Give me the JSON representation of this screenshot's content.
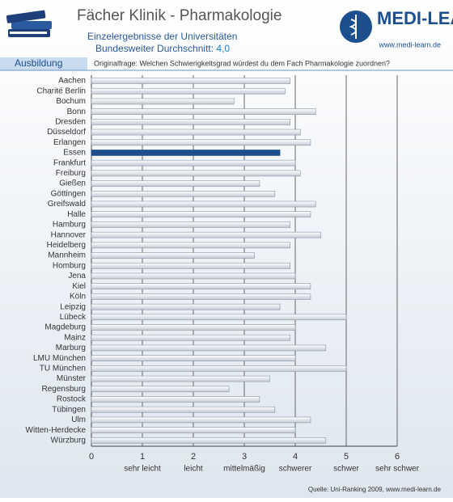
{
  "header": {
    "title": "Fächer Klinik - Pharmakologie",
    "subtitle": "Einzelergebnisse der Universitäten",
    "average_label": "Bundesweiter Durchschnitt:",
    "average_value": "4,0",
    "logo": "MEDI-LEARN",
    "logo_url": "www.medi-learn.de",
    "section": "Ausbildung",
    "question": "Originalfrage: Welchen Schwierigkeitsgrad würdest du dem Fach Pharmakologie zuordnen?"
  },
  "footer": "Quelle: Uni-Ranking 2009, www.medi-learn.de",
  "chart_data": {
    "type": "hbar",
    "categories": [
      "Aachen",
      "Charité Berlin",
      "Bochum",
      "Bonn",
      "Dresden",
      "Düsseldorf",
      "Erlangen",
      "Essen",
      "Frankfurt",
      "Freiburg",
      "Gießen",
      "Göttingen",
      "Greifswald",
      "Halle",
      "Hamburg",
      "Hannover",
      "Heidelberg",
      "Mannheim",
      "Homburg",
      "Jena",
      "Kiel",
      "Köln",
      "Leipzig",
      "Lübeck",
      "Magdeburg",
      "Mainz",
      "Marburg",
      "LMU München",
      "TU München",
      "Münster",
      "Regensburg",
      "Rostock",
      "Tübingen",
      "Ulm",
      "Witten-Herdecke",
      "Würzburg"
    ],
    "values": [
      3.9,
      3.8,
      2.8,
      4.4,
      3.9,
      4.1,
      4.3,
      3.7,
      4.0,
      4.1,
      3.3,
      3.6,
      4.4,
      4.3,
      3.9,
      4.5,
      3.9,
      3.2,
      3.9,
      4.0,
      4.3,
      4.3,
      3.7,
      5.0,
      4.0,
      3.9,
      4.6,
      4.0,
      5.0,
      3.5,
      2.7,
      3.3,
      3.6,
      4.3,
      4.0,
      4.6
    ],
    "color": "#e4e8ee",
    "highlight": "Essen",
    "highlight_color": "#1d4f8f",
    "xlim": [
      0,
      6
    ],
    "xticks": [
      0,
      1,
      2,
      3,
      4,
      5,
      6
    ],
    "xtick_captions": [
      null,
      "sehr leicht",
      "leicht",
      "mittelmäßig",
      "schwerer",
      "schwer",
      "sehr schwer"
    ],
    "grid": true
  }
}
